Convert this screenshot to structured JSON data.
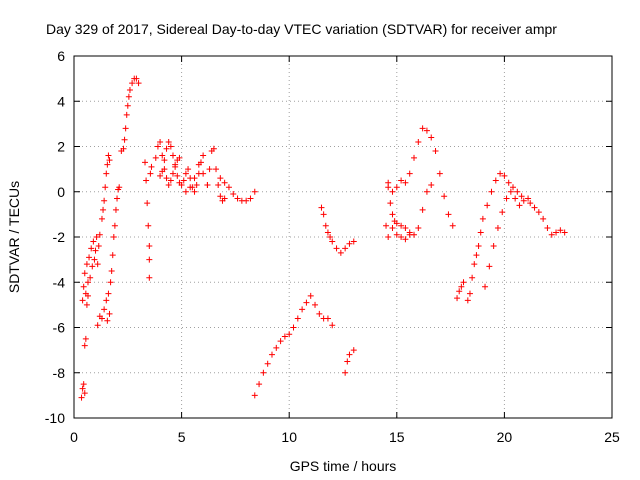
{
  "chart_data": {
    "type": "scatter",
    "title": "Day 329 of 2017, Sidereal Day-to-day VTEC variation (SDTVAR) for receiver ampr",
    "xlabel": "GPS time / hours",
    "ylabel": "SDTVAR / TECUs",
    "xlim": [
      0,
      25
    ],
    "ylim": [
      -10,
      6
    ],
    "xticks": [
      0,
      5,
      10,
      15,
      20,
      25
    ],
    "yticks": [
      -10,
      -8,
      -6,
      -4,
      -2,
      0,
      2,
      4,
      6
    ],
    "grid": true,
    "legend": "none",
    "marker": "plus",
    "color": "#ff0000",
    "series": [
      {
        "points": [
          [
            0.35,
            -9.1
          ],
          [
            0.4,
            -8.7
          ],
          [
            0.45,
            -8.5
          ],
          [
            0.5,
            -8.9
          ],
          [
            0.4,
            -4.8
          ],
          [
            0.45,
            -4.2
          ],
          [
            0.5,
            -3.6
          ],
          [
            0.55,
            -4.5
          ],
          [
            0.6,
            -3.2
          ],
          [
            0.65,
            -4.0
          ],
          [
            0.7,
            -2.9
          ],
          [
            0.75,
            -3.8
          ],
          [
            0.8,
            -2.5
          ],
          [
            0.85,
            -3.3
          ],
          [
            0.9,
            -2.2
          ],
          [
            0.95,
            -3.0
          ],
          [
            0.5,
            -6.8
          ],
          [
            0.55,
            -6.5
          ],
          [
            0.6,
            -5.0
          ],
          [
            0.65,
            -4.6
          ],
          [
            1.0,
            -2.6
          ],
          [
            1.05,
            -2.0
          ],
          [
            1.1,
            -3.2
          ],
          [
            1.15,
            -2.4
          ],
          [
            1.2,
            -1.9
          ],
          [
            1.3,
            -1.2
          ],
          [
            1.35,
            -0.8
          ],
          [
            1.4,
            -0.4
          ],
          [
            1.45,
            0.2
          ],
          [
            1.5,
            0.8
          ],
          [
            1.55,
            1.2
          ],
          [
            1.6,
            1.6
          ],
          [
            1.65,
            1.4
          ],
          [
            1.1,
            -5.9
          ],
          [
            1.2,
            -5.5
          ],
          [
            1.3,
            -5.6
          ],
          [
            1.4,
            -5.2
          ],
          [
            1.5,
            -4.8
          ],
          [
            1.55,
            -5.7
          ],
          [
            1.6,
            -4.5
          ],
          [
            1.65,
            -5.4
          ],
          [
            1.7,
            -4.0
          ],
          [
            1.75,
            -3.5
          ],
          [
            1.8,
            -2.8
          ],
          [
            1.85,
            -2.0
          ],
          [
            1.9,
            -1.5
          ],
          [
            1.95,
            -0.8
          ],
          [
            2.0,
            -0.3
          ],
          [
            2.05,
            0.1
          ],
          [
            2.1,
            0.2
          ],
          [
            2.2,
            1.8
          ],
          [
            2.3,
            1.9
          ],
          [
            2.35,
            2.3
          ],
          [
            2.4,
            2.8
          ],
          [
            2.45,
            3.4
          ],
          [
            2.5,
            3.8
          ],
          [
            2.55,
            4.2
          ],
          [
            2.6,
            4.5
          ],
          [
            2.7,
            4.8
          ],
          [
            2.8,
            5.0
          ],
          [
            2.9,
            5.0
          ],
          [
            3.0,
            4.8
          ],
          [
            3.3,
            1.3
          ],
          [
            3.35,
            0.5
          ],
          [
            3.4,
            -0.5
          ],
          [
            3.45,
            -1.5
          ],
          [
            3.5,
            -2.4
          ],
          [
            3.5,
            -3.0
          ],
          [
            3.5,
            -3.8
          ],
          [
            3.55,
            0.8
          ],
          [
            3.6,
            1.1
          ],
          [
            3.8,
            1.5
          ],
          [
            3.9,
            2.0
          ],
          [
            4.0,
            2.2
          ],
          [
            4.1,
            1.6
          ],
          [
            4.2,
            1.0
          ],
          [
            4.3,
            0.6
          ],
          [
            4.4,
            0.3
          ],
          [
            4.5,
            0.5
          ],
          [
            4.6,
            0.8
          ],
          [
            4.7,
            1.2
          ],
          [
            4.8,
            1.4
          ],
          [
            4.9,
            1.5
          ],
          [
            4.0,
            0.7
          ],
          [
            4.1,
            0.9
          ],
          [
            4.2,
            1.4
          ],
          [
            4.3,
            1.9
          ],
          [
            4.4,
            2.2
          ],
          [
            4.5,
            2.0
          ],
          [
            4.6,
            1.6
          ],
          [
            4.7,
            1.1
          ],
          [
            4.8,
            0.7
          ],
          [
            4.9,
            0.4
          ],
          [
            5.0,
            0.3
          ],
          [
            5.1,
            0.5
          ],
          [
            5.2,
            0.8
          ],
          [
            5.3,
            1.0
          ],
          [
            5.4,
            0.6
          ],
          [
            5.5,
            0.2
          ],
          [
            5.6,
            0.0
          ],
          [
            5.7,
            0.3
          ],
          [
            5.8,
            0.8
          ],
          [
            5.9,
            1.3
          ],
          [
            6.0,
            1.6
          ],
          [
            5.2,
            0.0
          ],
          [
            5.4,
            0.2
          ],
          [
            5.6,
            0.6
          ],
          [
            5.8,
            1.2
          ],
          [
            6.0,
            0.8
          ],
          [
            6.2,
            0.3
          ],
          [
            6.2,
            0.3
          ],
          [
            6.3,
            1.0
          ],
          [
            6.4,
            1.8
          ],
          [
            6.5,
            1.9
          ],
          [
            6.6,
            1.0
          ],
          [
            6.7,
            0.3
          ],
          [
            6.8,
            -0.2
          ],
          [
            6.9,
            -0.4
          ],
          [
            7.0,
            -0.3
          ],
          [
            6.8,
            0.6
          ],
          [
            7.0,
            0.4
          ],
          [
            7.2,
            0.2
          ],
          [
            7.4,
            -0.1
          ],
          [
            7.6,
            -0.3
          ],
          [
            7.8,
            -0.4
          ],
          [
            8.0,
            -0.4
          ],
          [
            8.2,
            -0.3
          ],
          [
            8.4,
            0.0
          ],
          [
            8.4,
            -9.0
          ],
          [
            8.6,
            -8.5
          ],
          [
            8.8,
            -8.0
          ],
          [
            9.0,
            -7.6
          ],
          [
            9.2,
            -7.2
          ],
          [
            9.4,
            -6.9
          ],
          [
            9.6,
            -6.6
          ],
          [
            9.8,
            -6.4
          ],
          [
            10.0,
            -6.3
          ],
          [
            10.2,
            -6.0
          ],
          [
            10.4,
            -5.6
          ],
          [
            10.6,
            -5.2
          ],
          [
            10.8,
            -4.9
          ],
          [
            11.0,
            -4.6
          ],
          [
            11.2,
            -5.0
          ],
          [
            11.4,
            -5.4
          ],
          [
            11.6,
            -5.6
          ],
          [
            11.8,
            -5.6
          ],
          [
            12.0,
            -5.9
          ],
          [
            11.5,
            -0.7
          ],
          [
            11.6,
            -1.0
          ],
          [
            11.7,
            -1.5
          ],
          [
            11.8,
            -1.8
          ],
          [
            11.9,
            -2.0
          ],
          [
            12.0,
            -2.2
          ],
          [
            12.2,
            -2.5
          ],
          [
            12.4,
            -2.7
          ],
          [
            12.6,
            -2.5
          ],
          [
            12.8,
            -2.3
          ],
          [
            13.0,
            -2.2
          ],
          [
            12.6,
            -8.0
          ],
          [
            12.7,
            -7.5
          ],
          [
            12.8,
            -7.2
          ],
          [
            13.0,
            -7.0
          ],
          [
            14.6,
            0.2
          ],
          [
            14.7,
            -0.5
          ],
          [
            14.8,
            -1.0
          ],
          [
            14.9,
            -1.3
          ],
          [
            15.0,
            -1.4
          ],
          [
            15.2,
            -1.5
          ],
          [
            15.4,
            -1.6
          ],
          [
            15.6,
            -1.8
          ],
          [
            15.8,
            -1.9
          ],
          [
            16.0,
            -1.6
          ],
          [
            16.2,
            -0.8
          ],
          [
            16.4,
            0.0
          ],
          [
            16.6,
            0.3
          ],
          [
            14.6,
            0.4
          ],
          [
            14.8,
            0.0
          ],
          [
            15.0,
            0.2
          ],
          [
            15.2,
            0.5
          ],
          [
            15.4,
            0.4
          ],
          [
            15.6,
            0.8
          ],
          [
            15.8,
            1.5
          ],
          [
            16.0,
            2.2
          ],
          [
            16.2,
            2.8
          ],
          [
            16.4,
            2.7
          ],
          [
            16.6,
            2.4
          ],
          [
            16.8,
            1.8
          ],
          [
            17.0,
            0.8
          ],
          [
            17.2,
            -0.2
          ],
          [
            17.4,
            -1.0
          ],
          [
            17.6,
            -1.5
          ],
          [
            14.5,
            -1.5
          ],
          [
            14.6,
            -2.0
          ],
          [
            14.8,
            -1.6
          ],
          [
            15.0,
            -1.9
          ],
          [
            15.2,
            -2.0
          ],
          [
            15.4,
            -2.1
          ],
          [
            15.6,
            -1.9
          ],
          [
            17.8,
            -4.7
          ],
          [
            17.9,
            -4.4
          ],
          [
            18.0,
            -4.2
          ],
          [
            18.1,
            -4.0
          ],
          [
            18.3,
            -4.8
          ],
          [
            18.4,
            -4.5
          ],
          [
            18.5,
            -3.8
          ],
          [
            18.6,
            -3.2
          ],
          [
            18.7,
            -2.8
          ],
          [
            18.8,
            -2.4
          ],
          [
            18.9,
            -1.8
          ],
          [
            19.0,
            -1.2
          ],
          [
            19.2,
            -0.6
          ],
          [
            19.4,
            0.0
          ],
          [
            19.6,
            0.5
          ],
          [
            19.8,
            0.8
          ],
          [
            20.0,
            0.7
          ],
          [
            20.2,
            0.4
          ],
          [
            20.4,
            0.2
          ],
          [
            20.6,
            0.0
          ],
          [
            20.8,
            -0.2
          ],
          [
            19.1,
            -4.2
          ],
          [
            19.3,
            -3.3
          ],
          [
            19.5,
            -2.4
          ],
          [
            19.7,
            -1.6
          ],
          [
            19.9,
            -0.9
          ],
          [
            20.1,
            -0.3
          ],
          [
            20.3,
            0.0
          ],
          [
            20.5,
            -0.3
          ],
          [
            20.7,
            -0.6
          ],
          [
            20.9,
            -0.4
          ],
          [
            21.1,
            -0.3
          ],
          [
            21.2,
            -0.5
          ],
          [
            21.4,
            -0.7
          ],
          [
            21.6,
            -0.9
          ],
          [
            21.8,
            -1.2
          ],
          [
            22.0,
            -1.6
          ],
          [
            22.2,
            -1.9
          ],
          [
            22.4,
            -1.8
          ],
          [
            22.6,
            -1.7
          ],
          [
            22.8,
            -1.8
          ]
        ]
      }
    ]
  }
}
